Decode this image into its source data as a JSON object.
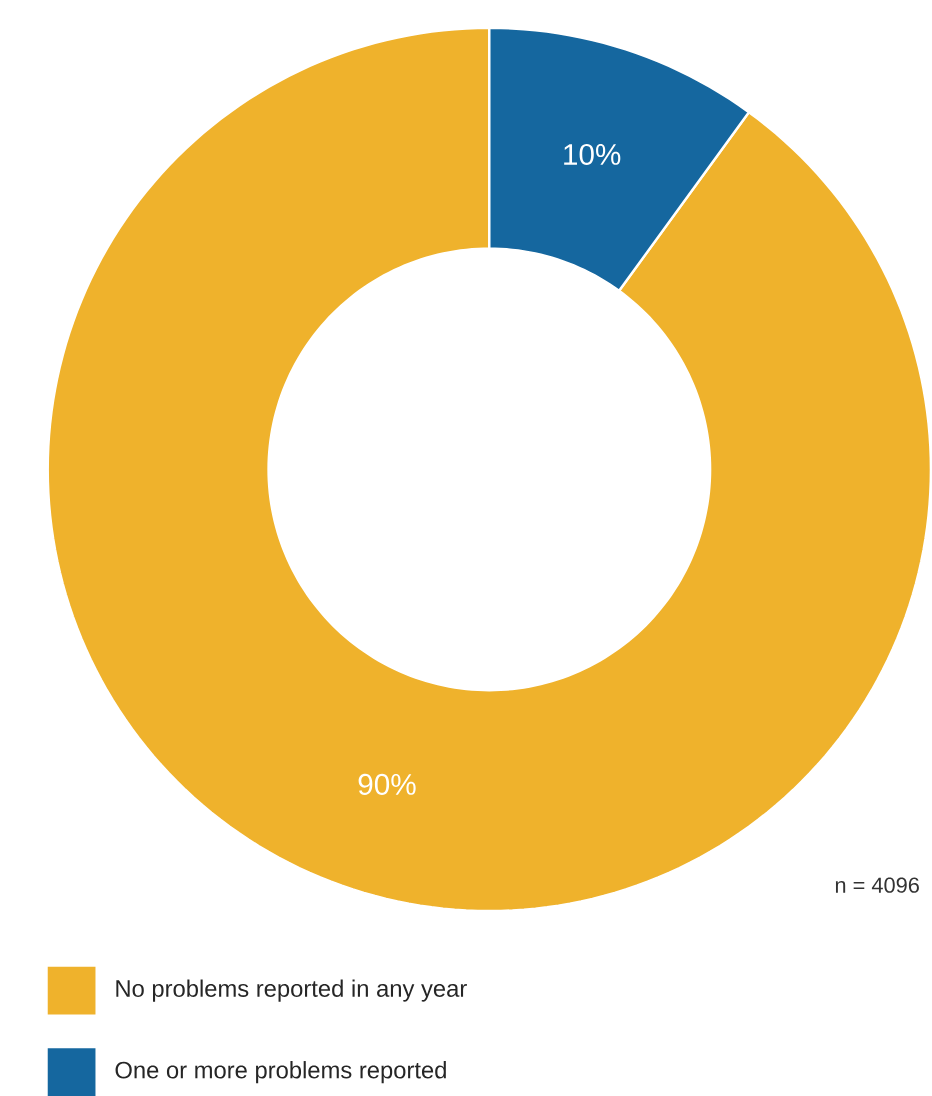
{
  "chart_data": {
    "type": "donut",
    "categories": [
      "No problems reported in any year",
      "One or more problems reported"
    ],
    "values": [
      90,
      10
    ],
    "colors": [
      "#efb22c",
      "#15679f"
    ],
    "value_labels": [
      "90%",
      "10%"
    ],
    "annotations": [
      "n = 4096"
    ],
    "legend": "bottom left"
  }
}
